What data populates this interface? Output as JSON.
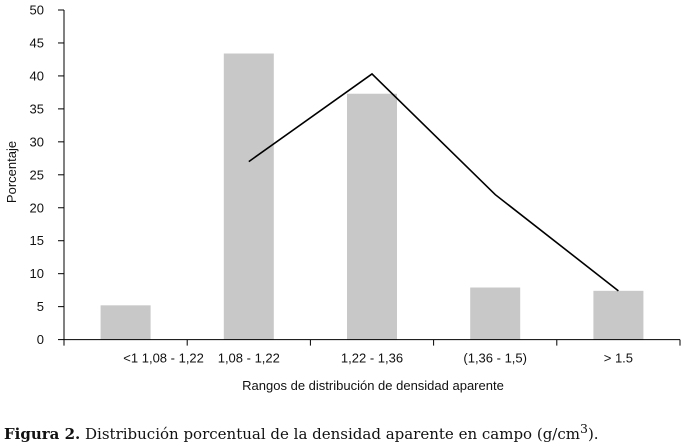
{
  "caption": {
    "label": "Figura 2.",
    "text_before_sup": " Distribución porcentual de la densidad aparente en campo (g/cm",
    "sup": "3",
    "text_after_sup": ")."
  },
  "chart_data": {
    "type": "bar",
    "xlabel": "Rangos de distribución de densidad aparente",
    "ylabel": "Porcentaje",
    "ylim": [
      0,
      50
    ],
    "yticks": [
      0,
      5,
      10,
      15,
      20,
      25,
      30,
      35,
      40,
      45,
      50
    ],
    "grid": false,
    "bar_color": "#c8c8c8",
    "line_color": "#000000",
    "categories": [
      "<1 1,08 - 1,22",
      "1,08 - 1,22",
      "1,22 - 1,36",
      "(1,36 - 1,5)",
      "> 1.5"
    ],
    "values": [
      5.2,
      43.4,
      37.3,
      7.9,
      7.4
    ],
    "line": {
      "points": [
        [
          1,
          27.0
        ],
        [
          2,
          40.3
        ],
        [
          3,
          22.0
        ],
        [
          4,
          7.4
        ]
      ]
    }
  }
}
